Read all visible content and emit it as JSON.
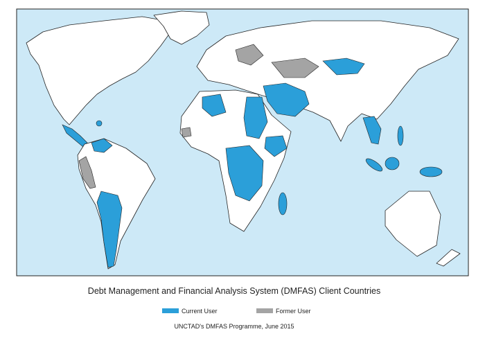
{
  "title": "Debt Management and Financial Analysis System (DMFAS) Client Countries",
  "legend": {
    "items": [
      {
        "label": "Current User",
        "color": "#2b9fd9"
      },
      {
        "label": "Former User",
        "color": "#a4a4a4"
      }
    ]
  },
  "footer": "UNCTAD's DMFAS Programme, June 2015"
}
